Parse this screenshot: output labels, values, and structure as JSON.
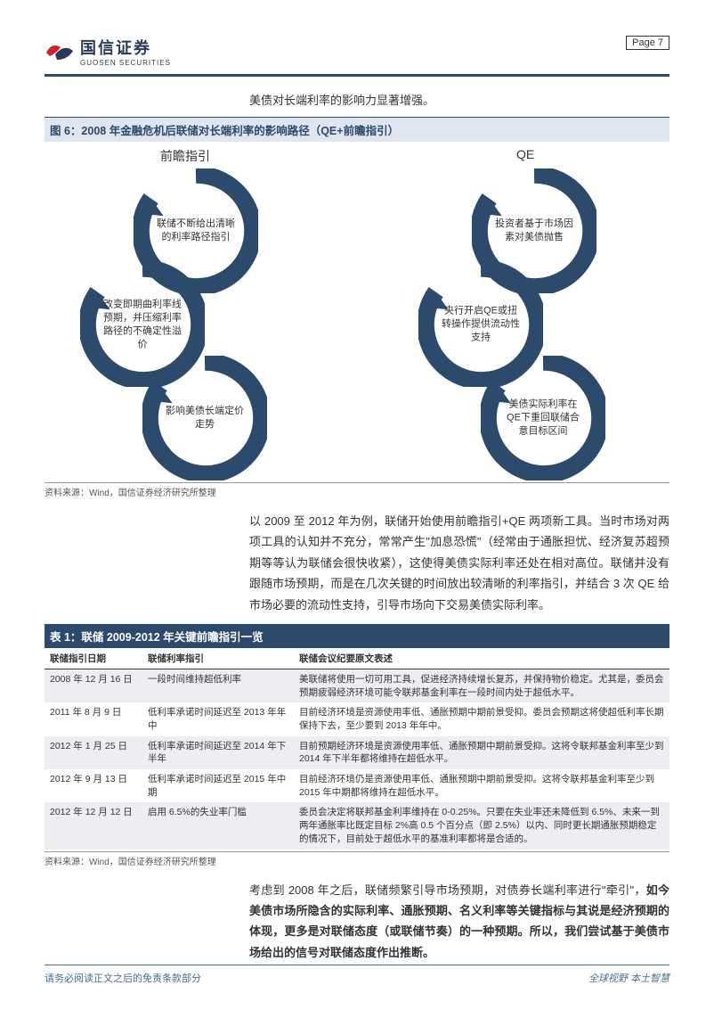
{
  "header": {
    "logo_cn": "国信证券",
    "logo_en": "GUOSEN SECURITIES",
    "page_label": "Page  7"
  },
  "intro_line": "美债对长端利率的影响力显著增强。",
  "figure6": {
    "title": "图 6：2008 年金融危机后联储对长端利率的影响路径（QE+前瞻指引）",
    "col_left_label": "前瞻指引",
    "col_right_label": "QE",
    "left_nodes": [
      "联储不断给出清晰的利率路径指引",
      "改变即期曲利率线预期，并压缩利率路径的不确定性溢价",
      "影响美债长端定价走势"
    ],
    "right_nodes": [
      "投资者基于市场因素对美债抛售",
      "央行开启QE或扭转操作提供流动性支持",
      "美债实际利率在QE下重回联储合意目标区间"
    ],
    "arc_color": "#2c4a6b",
    "source": "资料来源：Wind，国信证券经济研究所整理"
  },
  "para1": "以 2009 至 2012 年为例，联储开始使用前瞻指引+QE 两项新工具。当时市场对两项工具的认知并不充分，常常产生\"加息恐慌\"（经常由于通胀担忧、经济复苏超预期等等认为联储会很快收紧），这使得美债实际利率还处在相对高位。联储并没有跟随市场预期，而是在几次关键的时间放出较清晰的利率指引，并结合 3 次 QE 给市场必要的流动性支持，引导市场向下交易美债实际利率。",
  "table1": {
    "title": "表 1：联储 2009-2012 年关键前瞻指引一览",
    "columns": [
      "联储指引日期",
      "联储利率指引",
      "联储会议纪要原文表述"
    ],
    "col_widths": [
      "110px",
      "170px",
      "auto"
    ],
    "rows": [
      [
        "2008 年 12 月 16 日",
        "一段时间维持超低利率",
        "美联储将使用一切可用工具，促进经济持续增长复苏，并保持物价稳定。尤其是，委员会预期疲弱经济环境可能令联邦基金利率在一段时间内处于超低水平。"
      ],
      [
        "2011 年 8 月 9 日",
        "低利率承诺时间延迟至 2013 年年中",
        "目前经济环境是资源使用率低、通胀预期中期前景受抑。委员会预期这将使超低利率长期保持下去，至少要到 2013 年年中。"
      ],
      [
        "2012 年 1 月 25 日",
        "低利率承诺时间延迟至 2014 年下半年",
        "目前预期经济环境是资源使用率低、通胀预期中期前景受抑。这将令联邦基金利率至少到 2014 年下半年都将维持在超低水平。"
      ],
      [
        "2012 年 9 月 13 日",
        "低利率承诺时间延迟至 2015 年中期",
        "目前经济环境仍是资源使用率低、通胀预期中期前景受抑。这将令联邦基金利率至少到 2015 年中期都将维持在超低水平。"
      ],
      [
        "2012 年 12 月 12 日",
        "启用 6.5%的失业率门槛",
        "委员会决定将联邦基金利率维持在 0-0.25%。只要在失业率还未降低到 6.5%、未来一到两年通胀率比既定目标 2%高 0.5 个百分点（即 2.5%）以内、同时更长期通胀预期稳定的情况下，目前处于超低水平的基准利率都将是合适的。"
      ]
    ],
    "source": "资料来源：Wind，国信证券经济研究所整理"
  },
  "para2_plain": "考虑到 2008 年之后，联储频繁引导市场预期，对债券长端利率进行\"牵引\"，",
  "para2_bold": "如今美债市场所隐含的实际利率、通胀预期、名义利率等关键指标与其说是经济预期的体现，更多是对联储态度（或联储节奏）的一种预期。所以，我们尝试基于美债市场给出的信号对联储态度作出推断。",
  "footer": {
    "left": "请务必阅读正文之后的免责条款部分",
    "right": "全球视野  本土智慧"
  },
  "colors": {
    "brand_blue": "#2c4a6b",
    "light_band": "#e0e6ef",
    "alt_row": "#eceef2",
    "logo_red": "#c8242b",
    "logo_navy": "#2b3a56"
  }
}
